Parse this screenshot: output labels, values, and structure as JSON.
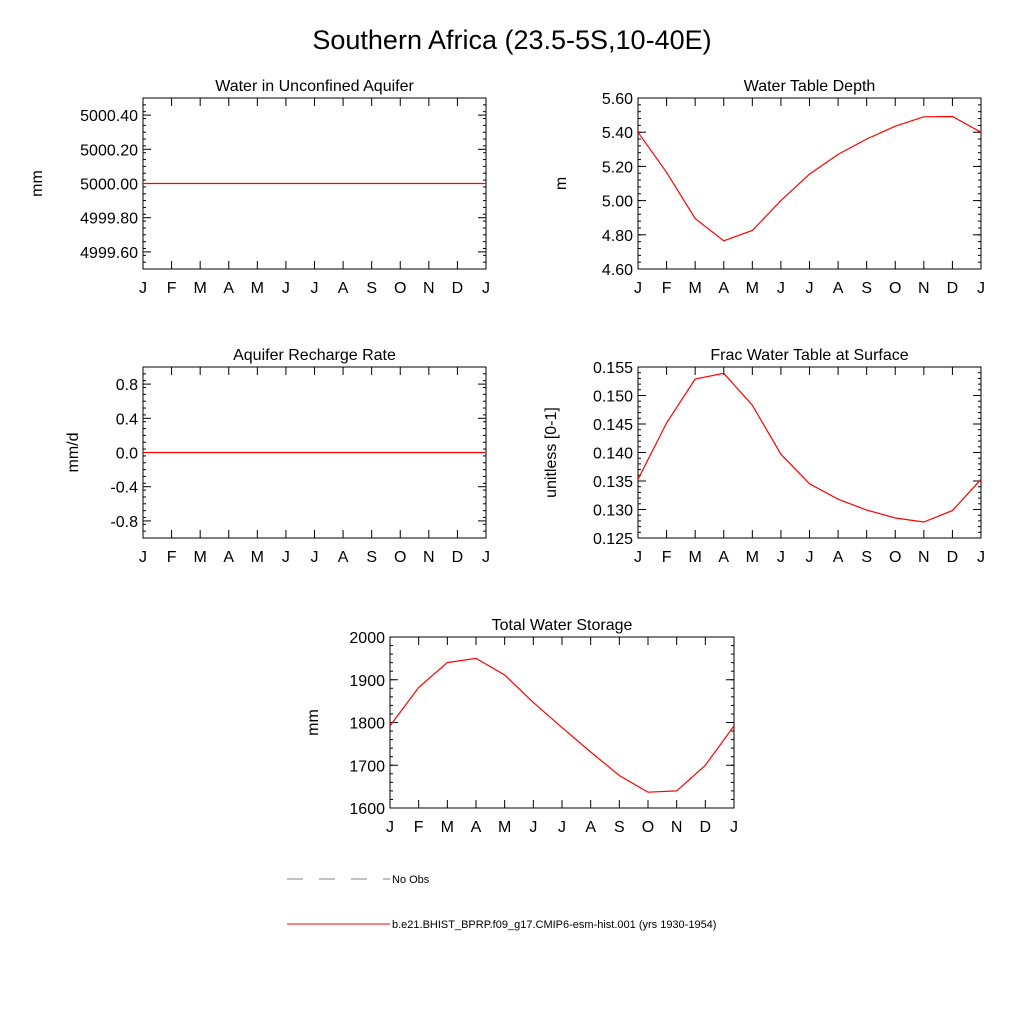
{
  "title": "Southern Africa (23.5-5S,10-40E)",
  "months": [
    "J",
    "F",
    "M",
    "A",
    "M",
    "J",
    "J",
    "A",
    "S",
    "O",
    "N",
    "D",
    "J"
  ],
  "series_color": "#ff0000",
  "chart_data": [
    {
      "type": "line",
      "title": "Water in Unconfined Aquifer",
      "ylabel": "mm",
      "ylim": [
        4999.5,
        5000.5
      ],
      "yticks": [
        4999.6,
        4999.8,
        5000.0,
        5000.2,
        5000.4
      ],
      "ytick_labels": [
        "4999.60",
        "4999.80",
        "5000.00",
        "5000.20",
        "5000.40"
      ],
      "x": [
        "J",
        "F",
        "M",
        "A",
        "M",
        "J",
        "J",
        "A",
        "S",
        "O",
        "N",
        "D",
        "J"
      ],
      "values": [
        5000,
        5000,
        5000,
        5000,
        5000,
        5000,
        5000,
        5000,
        5000,
        5000,
        5000,
        5000,
        5000
      ]
    },
    {
      "type": "line",
      "title": "Water Table Depth",
      "ylabel": "m",
      "ylim": [
        4.6,
        5.6
      ],
      "yticks": [
        4.6,
        4.8,
        5.0,
        5.2,
        5.4,
        5.6
      ],
      "ytick_labels": [
        "4.60",
        "4.80",
        "5.00",
        "5.20",
        "5.40",
        "5.60"
      ],
      "x": [
        "J",
        "F",
        "M",
        "A",
        "M",
        "J",
        "J",
        "A",
        "S",
        "O",
        "N",
        "D",
        "J"
      ],
      "values": [
        5.4,
        5.165,
        4.895,
        4.765,
        4.825,
        5.0,
        5.155,
        5.27,
        5.36,
        5.435,
        5.49,
        5.492,
        5.4
      ]
    },
    {
      "type": "line",
      "title": "Aquifer Recharge Rate",
      "ylabel": "mm/d",
      "ylim": [
        -1.0,
        1.0
      ],
      "yticks": [
        -0.8,
        -0.4,
        0.0,
        0.4,
        0.8
      ],
      "ytick_labels": [
        "-0.8",
        "-0.4",
        "0.0",
        "0.4",
        "0.8"
      ],
      "x": [
        "J",
        "F",
        "M",
        "A",
        "M",
        "J",
        "J",
        "A",
        "S",
        "O",
        "N",
        "D",
        "J"
      ],
      "values": [
        0,
        0,
        0,
        0,
        0,
        0,
        0,
        0,
        0,
        0,
        0,
        0,
        0
      ]
    },
    {
      "type": "line",
      "title": "Frac Water Table at Surface",
      "ylabel": "unitless [0-1]",
      "ylim": [
        0.125,
        0.155
      ],
      "yticks": [
        0.125,
        0.13,
        0.135,
        0.14,
        0.145,
        0.15,
        0.155
      ],
      "ytick_labels": [
        "0.125",
        "0.130",
        "0.135",
        "0.140",
        "0.145",
        "0.150",
        "0.155"
      ],
      "x": [
        "J",
        "F",
        "M",
        "A",
        "M",
        "J",
        "J",
        "A",
        "S",
        "O",
        "N",
        "D",
        "J"
      ],
      "values": [
        0.1353,
        0.1452,
        0.1529,
        0.1539,
        0.1483,
        0.1397,
        0.1345,
        0.1318,
        0.1299,
        0.1285,
        0.1278,
        0.1298,
        0.1353
      ]
    },
    {
      "type": "line",
      "title": "Total Water Storage",
      "ylabel": "mm",
      "ylim": [
        1600,
        2000
      ],
      "yticks": [
        1600,
        1700,
        1800,
        1900,
        2000
      ],
      "ytick_labels": [
        "1600",
        "1700",
        "1800",
        "1900",
        "2000"
      ],
      "x": [
        "J",
        "F",
        "M",
        "A",
        "M",
        "J",
        "J",
        "A",
        "S",
        "O",
        "N",
        "D",
        "J"
      ],
      "values": [
        1792,
        1882,
        1940,
        1950,
        1911,
        1847,
        1788,
        1731,
        1676,
        1637,
        1640,
        1700,
        1792
      ]
    }
  ],
  "legend": [
    {
      "label": "No Obs",
      "style": "dashed",
      "color": "#808080"
    },
    {
      "label": "b.e21.BHIST_BPRP.f09_g17.CMIP6-esm-hist.001 (yrs 1930-1954)",
      "style": "solid",
      "color": "#ff0000"
    }
  ]
}
